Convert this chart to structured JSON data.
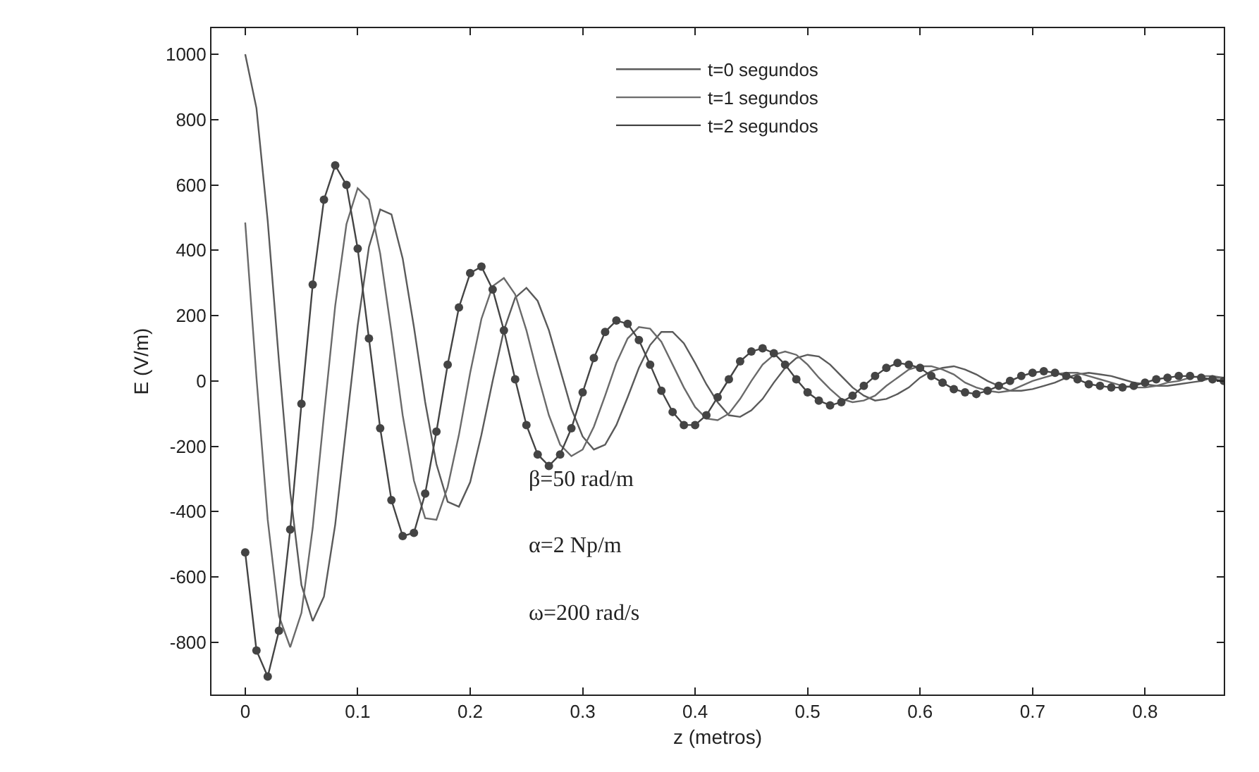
{
  "chart_data": {
    "type": "line",
    "xlabel": "z (metros)",
    "ylabel": "E (V/m)",
    "x": [
      0,
      0.01,
      0.02,
      0.03,
      0.04,
      0.05,
      0.06,
      0.07,
      0.08,
      0.09,
      0.1,
      0.11,
      0.12,
      0.13,
      0.14,
      0.15,
      0.16,
      0.17,
      0.18,
      0.19,
      0.2,
      0.21,
      0.22,
      0.23,
      0.24,
      0.25,
      0.26,
      0.27,
      0.28,
      0.29,
      0.3,
      0.31,
      0.32,
      0.33,
      0.34,
      0.35,
      0.36,
      0.37,
      0.38,
      0.39,
      0.4,
      0.41,
      0.42,
      0.43,
      0.44,
      0.45,
      0.46,
      0.47,
      0.48,
      0.49,
      0.5,
      0.51,
      0.52,
      0.53,
      0.54,
      0.55,
      0.56,
      0.57,
      0.58,
      0.59,
      0.6,
      0.61,
      0.62,
      0.63,
      0.64,
      0.65,
      0.66,
      0.67,
      0.68,
      0.69,
      0.7,
      0.71,
      0.72,
      0.73,
      0.74,
      0.75,
      0.76,
      0.77,
      0.78,
      0.79,
      0.8,
      0.81,
      0.82,
      0.83,
      0.84,
      0.85,
      0.86,
      0.87
    ],
    "series": [
      {
        "name": "t=0 segundos",
        "color": "#5a5a5a",
        "marker": "none",
        "values": [
          1000,
          835,
          490,
          60,
          -340,
          -625,
          -735,
          -660,
          -440,
          -135,
          170,
          410,
          525,
          510,
          375,
          165,
          -65,
          -255,
          -370,
          -385,
          -310,
          -165,
          0,
          155,
          255,
          285,
          245,
          155,
          35,
          -85,
          -170,
          -210,
          -195,
          -135,
          -50,
          40,
          110,
          150,
          150,
          115,
          55,
          -10,
          -65,
          -105,
          -110,
          -90,
          -55,
          -5,
          40,
          70,
          80,
          75,
          50,
          15,
          -20,
          -45,
          -60,
          -55,
          -40,
          -20,
          10,
          30,
          40,
          45,
          35,
          20,
          0,
          -15,
          -30,
          -30,
          -25,
          -15,
          -5,
          10,
          20,
          25,
          20,
          15,
          5,
          -5,
          -10,
          -15,
          -15,
          -10,
          -5,
          0,
          10,
          10
        ]
      },
      {
        "name": "t=1 segundos",
        "color": "#6a6a6a",
        "marker": "none",
        "values": [
          485,
          10,
          -425,
          -720,
          -815,
          -710,
          -450,
          -105,
          230,
          480,
          590,
          555,
          390,
          150,
          -105,
          -305,
          -420,
          -425,
          -325,
          -165,
          25,
          190,
          290,
          315,
          265,
          155,
          20,
          -105,
          -195,
          -230,
          -210,
          -140,
          -45,
          55,
          130,
          165,
          160,
          120,
          50,
          -20,
          -80,
          -115,
          -120,
          -100,
          -55,
          0,
          50,
          80,
          90,
          80,
          50,
          10,
          -25,
          -55,
          -65,
          -60,
          -45,
          -15,
          10,
          35,
          45,
          45,
          35,
          20,
          -5,
          -20,
          -30,
          -35,
          -30,
          -15,
          0,
          10,
          20,
          25,
          25,
          15,
          5,
          -5,
          -15,
          -20,
          -20,
          -15,
          -5,
          0,
          10,
          15,
          15,
          10
        ]
      },
      {
        "name": "t=2 segundos",
        "color": "#444444",
        "marker": "circle",
        "values": [
          -525,
          -825,
          -905,
          -765,
          -455,
          -70,
          295,
          555,
          660,
          600,
          405,
          130,
          -145,
          -365,
          -475,
          -465,
          -345,
          -155,
          50,
          225,
          330,
          350,
          280,
          155,
          5,
          -135,
          -225,
          -260,
          -225,
          -145,
          -35,
          70,
          150,
          185,
          175,
          125,
          50,
          -30,
          -95,
          -135,
          -135,
          -105,
          -50,
          5,
          60,
          90,
          100,
          85,
          50,
          5,
          -35,
          -60,
          -75,
          -65,
          -45,
          -15,
          15,
          40,
          55,
          50,
          40,
          15,
          -5,
          -25,
          -35,
          -40,
          -30,
          -15,
          0,
          15,
          25,
          30,
          25,
          15,
          5,
          -10,
          -15,
          -20,
          -20,
          -15,
          -5,
          5,
          10,
          15,
          15,
          10,
          5,
          0
        ]
      }
    ],
    "xlim": [
      -0.03,
      0.87
    ],
    "xticks": [
      0,
      0.1,
      0.2,
      0.3,
      0.4,
      0.5,
      0.6,
      0.7,
      0.8
    ],
    "ylim": [
      -960,
      1080
    ],
    "yticks": [
      -800,
      -600,
      -400,
      -200,
      0,
      200,
      400,
      600,
      800,
      1000
    ],
    "legend": "top",
    "line_style": "solid",
    "annotations": [
      "β=50 rad/m",
      "α=2 Np/m",
      "ω=200 rad/s"
    ]
  }
}
